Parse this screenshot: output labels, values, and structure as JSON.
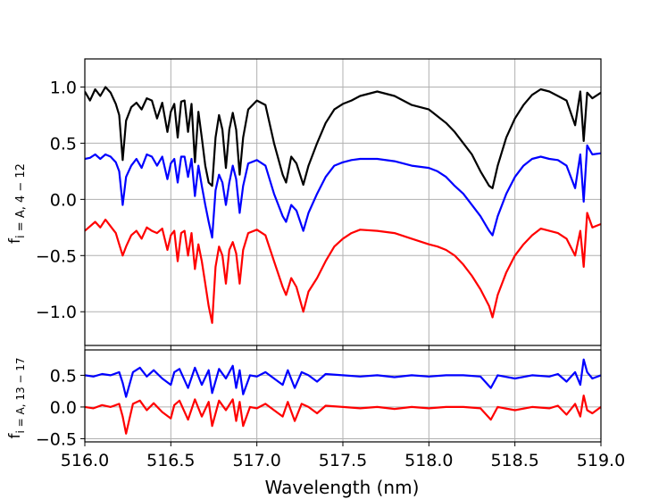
{
  "chart_data": [
    {
      "type": "line",
      "panel": "top",
      "ylabel": "f",
      "ylabel_sub": "i = A, 4 − 12",
      "xlim": [
        516.0,
        519.0
      ],
      "ylim": [
        -1.3,
        1.25
      ],
      "xticks": [
        516.0,
        516.5,
        517.0,
        517.5,
        518.0,
        518.5,
        519.0
      ],
      "yticks": [
        1.0,
        0.5,
        0.0,
        -0.5,
        -1.0
      ],
      "ytick_labels": [
        "1.0",
        "0.5",
        "0.0",
        "−0.5",
        "−1.0"
      ],
      "grid": true,
      "series": [
        {
          "color": "#000000",
          "x": [
            516.0,
            516.03,
            516.06,
            516.09,
            516.12,
            516.15,
            516.18,
            516.2,
            516.22,
            516.24,
            516.27,
            516.3,
            516.33,
            516.36,
            516.39,
            516.42,
            516.45,
            516.48,
            516.5,
            516.52,
            516.54,
            516.56,
            516.58,
            516.6,
            516.62,
            516.64,
            516.66,
            516.68,
            516.7,
            516.72,
            516.74,
            516.76,
            516.78,
            516.8,
            516.82,
            516.84,
            516.86,
            516.88,
            516.9,
            516.92,
            516.95,
            517.0,
            517.05,
            517.1,
            517.15,
            517.17,
            517.2,
            517.23,
            517.27,
            517.3,
            517.35,
            517.4,
            517.45,
            517.5,
            517.55,
            517.6,
            517.7,
            517.8,
            517.9,
            518.0,
            518.05,
            518.1,
            518.15,
            518.2,
            518.25,
            518.3,
            518.35,
            518.37,
            518.4,
            518.45,
            518.5,
            518.55,
            518.6,
            518.65,
            518.7,
            518.75,
            518.8,
            518.85,
            518.88,
            518.9,
            518.92,
            518.95,
            519.0
          ],
          "y": [
            0.96,
            0.88,
            0.98,
            0.92,
            1.0,
            0.95,
            0.85,
            0.75,
            0.35,
            0.7,
            0.82,
            0.86,
            0.8,
            0.9,
            0.88,
            0.72,
            0.86,
            0.6,
            0.78,
            0.85,
            0.55,
            0.87,
            0.88,
            0.6,
            0.85,
            0.33,
            0.78,
            0.55,
            0.3,
            0.15,
            0.12,
            0.55,
            0.75,
            0.62,
            0.28,
            0.62,
            0.77,
            0.62,
            0.22,
            0.55,
            0.8,
            0.88,
            0.84,
            0.5,
            0.22,
            0.15,
            0.38,
            0.32,
            0.13,
            0.3,
            0.5,
            0.68,
            0.8,
            0.85,
            0.88,
            0.92,
            0.96,
            0.92,
            0.84,
            0.8,
            0.74,
            0.68,
            0.6,
            0.5,
            0.4,
            0.25,
            0.12,
            0.1,
            0.3,
            0.55,
            0.72,
            0.84,
            0.93,
            0.98,
            0.96,
            0.92,
            0.88,
            0.66,
            0.96,
            0.52,
            0.95,
            0.9,
            0.95
          ]
        },
        {
          "color": "#0000ff",
          "x": [
            516.0,
            516.03,
            516.06,
            516.09,
            516.12,
            516.15,
            516.18,
            516.2,
            516.22,
            516.24,
            516.27,
            516.3,
            516.33,
            516.36,
            516.39,
            516.42,
            516.45,
            516.48,
            516.5,
            516.52,
            516.54,
            516.56,
            516.58,
            516.6,
            516.62,
            516.64,
            516.66,
            516.68,
            516.7,
            516.72,
            516.74,
            516.76,
            516.78,
            516.8,
            516.82,
            516.84,
            516.86,
            516.88,
            516.9,
            516.92,
            516.95,
            517.0,
            517.05,
            517.1,
            517.15,
            517.17,
            517.2,
            517.23,
            517.27,
            517.3,
            517.35,
            517.4,
            517.45,
            517.5,
            517.55,
            517.6,
            517.7,
            517.8,
            517.9,
            518.0,
            518.05,
            518.1,
            518.15,
            518.2,
            518.25,
            518.3,
            518.35,
            518.37,
            518.4,
            518.45,
            518.5,
            518.55,
            518.6,
            518.65,
            518.7,
            518.75,
            518.8,
            518.85,
            518.88,
            518.9,
            518.92,
            518.95,
            519.0
          ],
          "y": [
            0.36,
            0.37,
            0.4,
            0.36,
            0.4,
            0.38,
            0.33,
            0.25,
            -0.05,
            0.2,
            0.3,
            0.36,
            0.28,
            0.4,
            0.38,
            0.3,
            0.38,
            0.18,
            0.32,
            0.36,
            0.15,
            0.38,
            0.38,
            0.2,
            0.36,
            0.03,
            0.3,
            0.12,
            -0.05,
            -0.2,
            -0.34,
            0.08,
            0.22,
            0.15,
            -0.05,
            0.15,
            0.3,
            0.18,
            -0.12,
            0.12,
            0.32,
            0.35,
            0.3,
            0.05,
            -0.15,
            -0.2,
            -0.05,
            -0.1,
            -0.28,
            -0.12,
            0.05,
            0.2,
            0.3,
            0.33,
            0.35,
            0.36,
            0.36,
            0.34,
            0.3,
            0.28,
            0.25,
            0.2,
            0.12,
            0.05,
            -0.05,
            -0.15,
            -0.28,
            -0.32,
            -0.15,
            0.05,
            0.2,
            0.3,
            0.36,
            0.38,
            0.36,
            0.35,
            0.3,
            0.1,
            0.4,
            -0.02,
            0.48,
            0.4,
            0.41
          ]
        },
        {
          "color": "#ff0000",
          "x": [
            516.0,
            516.03,
            516.06,
            516.09,
            516.12,
            516.15,
            516.18,
            516.2,
            516.22,
            516.24,
            516.27,
            516.3,
            516.33,
            516.36,
            516.39,
            516.42,
            516.45,
            516.48,
            516.5,
            516.52,
            516.54,
            516.56,
            516.58,
            516.6,
            516.62,
            516.64,
            516.66,
            516.68,
            516.7,
            516.72,
            516.74,
            516.76,
            516.78,
            516.8,
            516.82,
            516.84,
            516.86,
            516.88,
            516.9,
            516.92,
            516.95,
            517.0,
            517.05,
            517.1,
            517.15,
            517.17,
            517.2,
            517.23,
            517.27,
            517.3,
            517.35,
            517.4,
            517.45,
            517.5,
            517.55,
            517.6,
            517.7,
            517.8,
            517.9,
            518.0,
            518.05,
            518.1,
            518.15,
            518.2,
            518.25,
            518.3,
            518.35,
            518.37,
            518.4,
            518.45,
            518.5,
            518.55,
            518.6,
            518.65,
            518.7,
            518.75,
            518.8,
            518.85,
            518.88,
            518.9,
            518.92,
            518.95,
            519.0
          ],
          "y": [
            -0.28,
            -0.24,
            -0.2,
            -0.25,
            -0.18,
            -0.24,
            -0.3,
            -0.4,
            -0.5,
            -0.42,
            -0.32,
            -0.28,
            -0.35,
            -0.25,
            -0.28,
            -0.3,
            -0.26,
            -0.45,
            -0.32,
            -0.28,
            -0.55,
            -0.3,
            -0.28,
            -0.5,
            -0.3,
            -0.62,
            -0.4,
            -0.55,
            -0.75,
            -0.95,
            -1.1,
            -0.6,
            -0.42,
            -0.5,
            -0.75,
            -0.45,
            -0.38,
            -0.48,
            -0.75,
            -0.45,
            -0.3,
            -0.27,
            -0.32,
            -0.55,
            -0.78,
            -0.85,
            -0.7,
            -0.78,
            -1.0,
            -0.82,
            -0.7,
            -0.55,
            -0.42,
            -0.35,
            -0.3,
            -0.27,
            -0.28,
            -0.3,
            -0.35,
            -0.4,
            -0.42,
            -0.45,
            -0.5,
            -0.58,
            -0.68,
            -0.8,
            -0.95,
            -1.05,
            -0.85,
            -0.65,
            -0.5,
            -0.4,
            -0.32,
            -0.26,
            -0.28,
            -0.3,
            -0.35,
            -0.5,
            -0.28,
            -0.6,
            -0.12,
            -0.25,
            -0.22
          ]
        }
      ]
    },
    {
      "type": "line",
      "panel": "bottom",
      "xlabel": "Wavelength (nm)",
      "ylabel": "f",
      "ylabel_sub": "i = A, 13 − 17",
      "xlim": [
        516.0,
        519.0
      ],
      "ylim": [
        -0.55,
        0.9
      ],
      "xticks": [
        516.0,
        516.5,
        517.0,
        517.5,
        518.0,
        518.5,
        519.0
      ],
      "xtick_labels": [
        "516.0",
        "516.5",
        "517.0",
        "517.5",
        "518.0",
        "518.5",
        "519.0"
      ],
      "yticks": [
        0.5,
        0.0,
        -0.5
      ],
      "ytick_labels": [
        "0.5",
        "0.0",
        "−0.5"
      ],
      "grid": true,
      "series": [
        {
          "color": "#0000ff",
          "x": [
            516.0,
            516.05,
            516.1,
            516.15,
            516.2,
            516.22,
            516.24,
            516.28,
            516.32,
            516.36,
            516.4,
            516.45,
            516.5,
            516.52,
            516.55,
            516.6,
            516.64,
            516.68,
            516.72,
            516.74,
            516.78,
            516.82,
            516.86,
            516.88,
            516.9,
            516.92,
            516.96,
            517.0,
            517.05,
            517.1,
            517.15,
            517.18,
            517.22,
            517.26,
            517.3,
            517.35,
            517.4,
            517.5,
            517.6,
            517.7,
            517.8,
            517.9,
            518.0,
            518.1,
            518.2,
            518.3,
            518.36,
            518.4,
            518.5,
            518.6,
            518.7,
            518.75,
            518.8,
            518.85,
            518.88,
            518.9,
            518.92,
            518.95,
            519.0
          ],
          "y": [
            0.5,
            0.48,
            0.52,
            0.5,
            0.55,
            0.38,
            0.16,
            0.55,
            0.62,
            0.48,
            0.58,
            0.45,
            0.35,
            0.55,
            0.6,
            0.3,
            0.62,
            0.35,
            0.58,
            0.22,
            0.6,
            0.45,
            0.65,
            0.3,
            0.58,
            0.2,
            0.5,
            0.48,
            0.55,
            0.45,
            0.35,
            0.58,
            0.3,
            0.55,
            0.5,
            0.4,
            0.52,
            0.5,
            0.48,
            0.5,
            0.47,
            0.5,
            0.48,
            0.5,
            0.5,
            0.48,
            0.3,
            0.5,
            0.45,
            0.5,
            0.48,
            0.52,
            0.4,
            0.55,
            0.35,
            0.75,
            0.55,
            0.45,
            0.5
          ]
        },
        {
          "color": "#ff0000",
          "x": [
            516.0,
            516.05,
            516.1,
            516.15,
            516.2,
            516.22,
            516.24,
            516.28,
            516.32,
            516.36,
            516.4,
            516.45,
            516.5,
            516.52,
            516.55,
            516.6,
            516.64,
            516.68,
            516.72,
            516.74,
            516.78,
            516.82,
            516.86,
            516.88,
            516.9,
            516.92,
            516.96,
            517.0,
            517.05,
            517.1,
            517.15,
            517.18,
            517.22,
            517.26,
            517.3,
            517.35,
            517.4,
            517.5,
            517.6,
            517.7,
            517.8,
            517.9,
            518.0,
            518.1,
            518.2,
            518.3,
            518.36,
            518.4,
            518.5,
            518.6,
            518.7,
            518.75,
            518.8,
            518.85,
            518.88,
            518.9,
            518.92,
            518.95,
            519.0
          ],
          "y": [
            0.0,
            -0.02,
            0.03,
            0.0,
            0.05,
            -0.15,
            -0.42,
            0.05,
            0.1,
            -0.05,
            0.06,
            -0.08,
            -0.18,
            0.03,
            0.1,
            -0.2,
            0.12,
            -0.15,
            0.08,
            -0.3,
            0.1,
            -0.05,
            0.12,
            -0.22,
            0.08,
            -0.3,
            0.0,
            -0.02,
            0.05,
            -0.05,
            -0.15,
            0.08,
            -0.22,
            0.05,
            0.0,
            -0.1,
            0.02,
            0.0,
            -0.02,
            0.0,
            -0.03,
            0.0,
            -0.02,
            0.0,
            0.0,
            -0.02,
            -0.2,
            0.0,
            -0.05,
            0.0,
            -0.02,
            0.02,
            -0.12,
            0.05,
            -0.15,
            0.18,
            -0.05,
            -0.1,
            0.0
          ]
        }
      ]
    }
  ]
}
